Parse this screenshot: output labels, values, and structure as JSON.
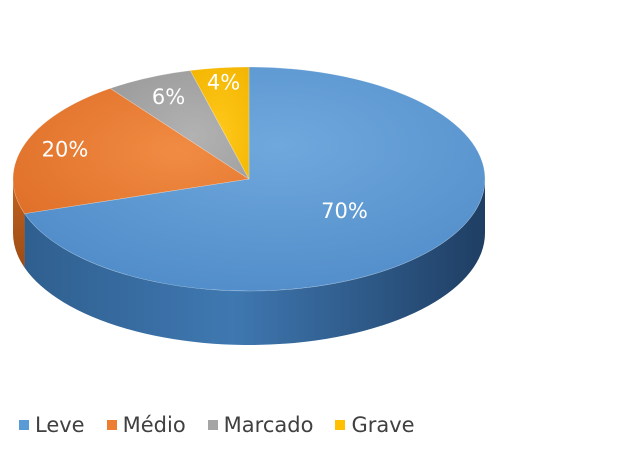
{
  "chart_data": {
    "type": "pie",
    "title": "",
    "categories": [
      "Leve",
      "Médio",
      "Marcado",
      "Grave"
    ],
    "values": [
      70,
      20,
      6,
      4
    ],
    "data_labels": [
      "70%",
      "20%",
      "6%",
      "4%"
    ],
    "colors": [
      "#5b9bd5",
      "#ed7d31",
      "#a5a5a5",
      "#ffc000"
    ],
    "legend_position": "bottom-left",
    "style": "3d"
  }
}
